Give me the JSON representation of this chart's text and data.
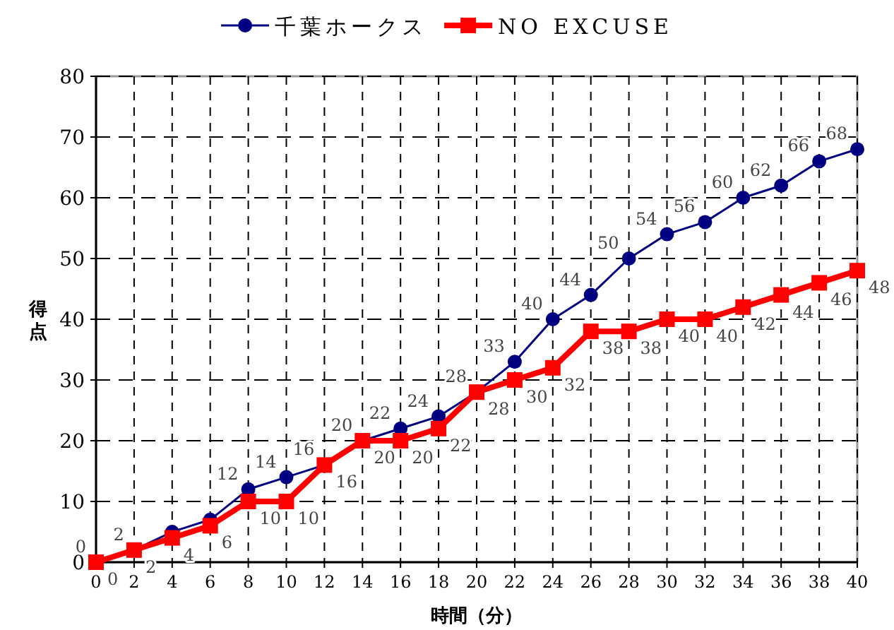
{
  "chart_data": {
    "type": "line",
    "xlabel": "時間（分）",
    "ylabel": "得点",
    "x": [
      0,
      2,
      4,
      6,
      8,
      10,
      12,
      14,
      16,
      18,
      20,
      22,
      24,
      26,
      28,
      30,
      32,
      34,
      36,
      38,
      40
    ],
    "series": [
      {
        "name": "千葉ホークス",
        "color": "#000080",
        "marker": "circle",
        "values": [
          0,
          2,
          5,
          7,
          12,
          14,
          16,
          20,
          22,
          24,
          28,
          33,
          40,
          44,
          50,
          54,
          56,
          60,
          62,
          66,
          68
        ],
        "value_labels": [
          "0",
          "2",
          null,
          null,
          "12",
          "14",
          "16",
          "20",
          "22",
          "24",
          "28",
          "33",
          "40",
          "44",
          "50",
          "54",
          "56",
          "60",
          "62",
          "66",
          "68"
        ]
      },
      {
        "name": "NO EXCUSE",
        "color": "#ff0000",
        "marker": "square",
        "values": [
          0,
          2,
          4,
          6,
          10,
          10,
          16,
          20,
          20,
          22,
          28,
          30,
          32,
          38,
          38,
          40,
          40,
          42,
          44,
          46,
          48
        ],
        "value_labels": [
          "0",
          "2",
          "4",
          "6",
          "10",
          "10",
          "16",
          "20",
          "20",
          "22",
          "28",
          "30",
          "32",
          "38",
          "38",
          "40",
          "40",
          "42",
          "44",
          "46",
          "48"
        ]
      }
    ],
    "xlim": [
      0,
      40
    ],
    "xticks": [
      0,
      2,
      4,
      6,
      8,
      10,
      12,
      14,
      16,
      18,
      20,
      22,
      24,
      26,
      28,
      30,
      32,
      34,
      36,
      38,
      40
    ],
    "ylim": [
      0,
      80
    ],
    "yticks": [
      0,
      10,
      20,
      30,
      40,
      50,
      60,
      70,
      80
    ],
    "grid": true,
    "line_style": "solid",
    "legend": "top"
  }
}
